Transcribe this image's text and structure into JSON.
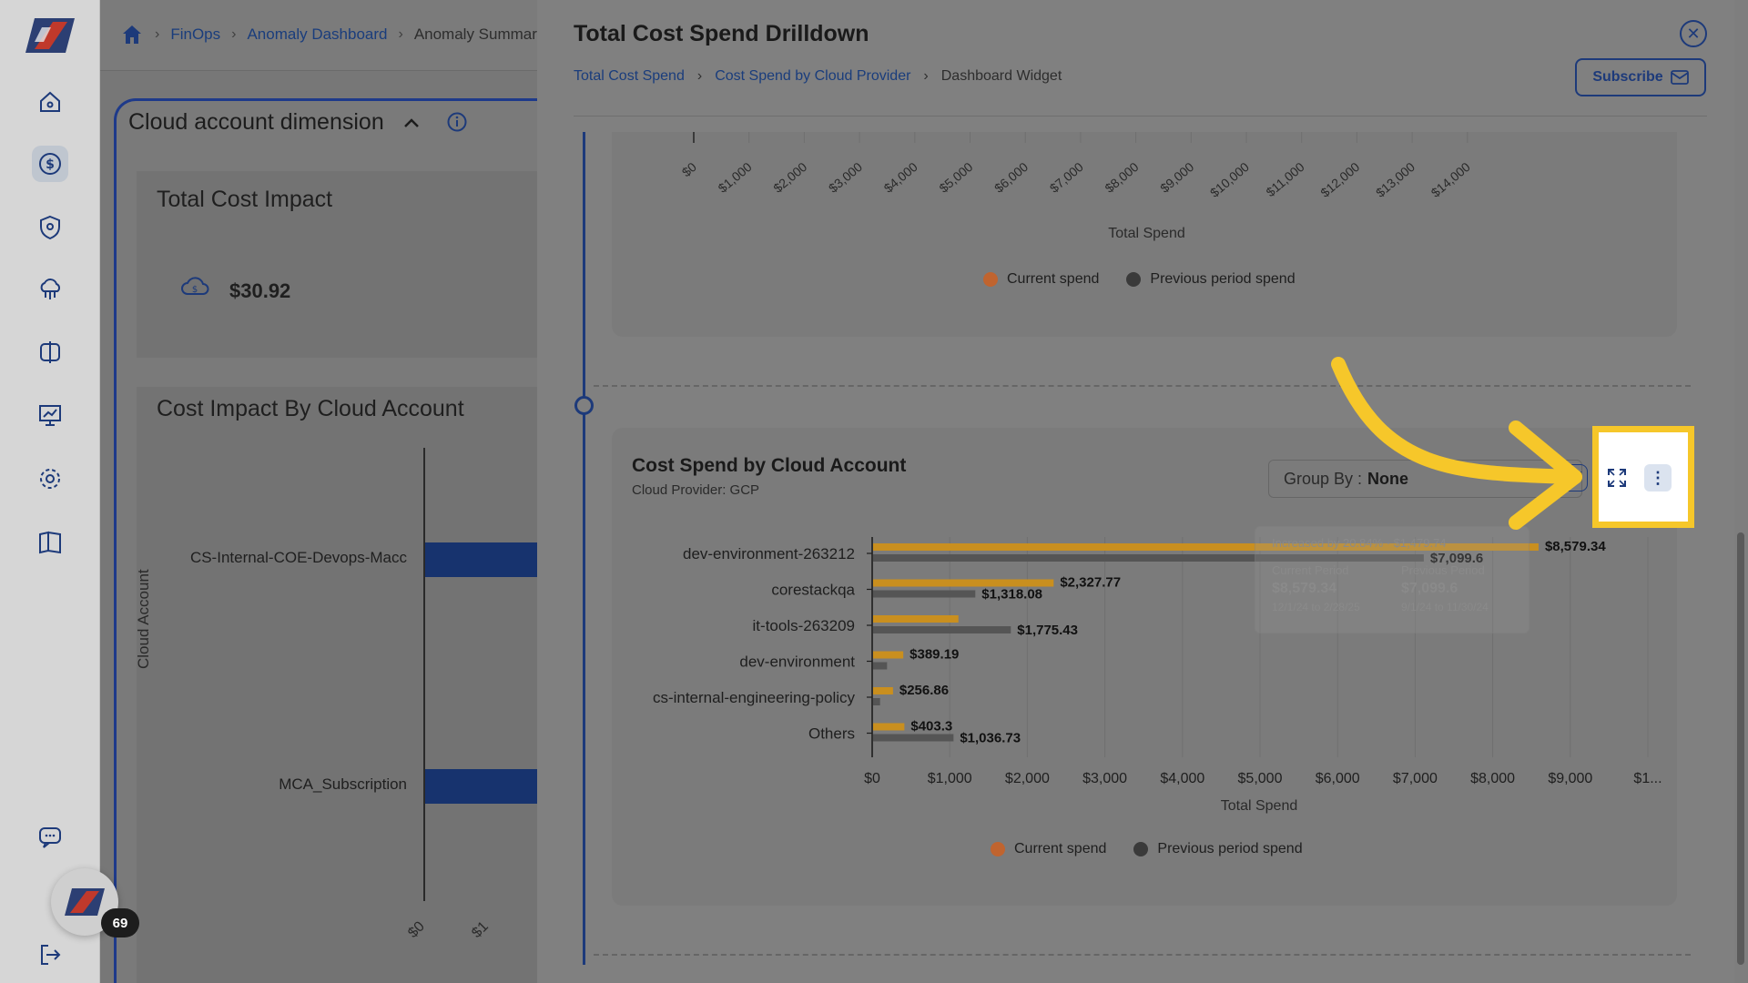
{
  "breadcrumb": {
    "items": [
      "FinOps",
      "Anomaly Dashboard",
      "Anomaly Summary"
    ]
  },
  "background": {
    "dimension_title": "Cloud account dimension",
    "card1": {
      "title": "Total Cost Impact",
      "amount": "$30.92"
    },
    "card2": {
      "title": "Cost Impact By Cloud Account",
      "y_axis_label": "Cloud Account",
      "rows": [
        {
          "label": "CS-Internal-COE-Devops-Macc"
        },
        {
          "label": "MCA_Subscription"
        }
      ],
      "ticks": [
        "$0",
        "$1"
      ]
    },
    "notification_count": "69"
  },
  "drawer": {
    "title": "Total Cost Spend Drilldown",
    "breadcrumb": [
      "Total Cost Spend",
      "Cost Spend by Cloud Provider",
      "Dashboard Widget"
    ],
    "subscribe_label": "Subscribe",
    "top_chart": {
      "x_ticks": [
        "$0",
        "$1,000",
        "$2,000",
        "$3,000",
        "$4,000",
        "$5,000",
        "$6,000",
        "$7,000",
        "$8,000",
        "$9,000",
        "$10,000",
        "$11,000",
        "$12,000",
        "$13,000",
        "$14,000"
      ],
      "x_label": "Total Spend",
      "legend": [
        "Current spend",
        "Previous period spend"
      ]
    },
    "bottom_chart": {
      "title": "Cost Spend by Cloud Account",
      "subtitle": "Cloud Provider: GCP",
      "group_by_label": "Group By :",
      "group_by_value": "None",
      "legend": [
        "Current spend",
        "Previous period spend"
      ],
      "tooltip": {
        "header": "Increased by 20.84% · $1,479.74",
        "current_label": "Current Period",
        "current_value": "$8,579.34",
        "current_range": "12/1/24 to 2/28/25",
        "previous_label": "Previous Period",
        "previous_value": "$7,099.6",
        "previous_range": "9/1/24 to 11/30/24"
      }
    }
  },
  "colors": {
    "current": "#c98f1f",
    "previous": "#555555",
    "accent": "#1d3a7a",
    "highlight": "#f6c72a"
  },
  "chart_data": {
    "type": "bar",
    "orientation": "horizontal",
    "title": "Cost Spend by Cloud Account",
    "subtitle": "Cloud Provider: GCP",
    "xlabel": "Total Spend",
    "ylabel": "",
    "xlim": [
      0,
      10000
    ],
    "x_ticks": [
      "$0",
      "$1,000",
      "$2,000",
      "$3,000",
      "$4,000",
      "$5,000",
      "$6,000",
      "$7,000",
      "$8,000",
      "$9,000",
      "$1..."
    ],
    "categories": [
      "dev-environment-263212",
      "corestackqa",
      "it-tools-263209",
      "dev-environment",
      "cs-internal-engineering-policy",
      "Others"
    ],
    "series": [
      {
        "name": "Current spend",
        "values": [
          8579.34,
          2327.77,
          1100,
          389.19,
          256.86,
          403.3
        ],
        "labels": [
          "$8,579.34",
          "$2,327.77",
          "",
          "$389.19",
          "$256.86",
          "$403.3"
        ]
      },
      {
        "name": "Previous period spend",
        "values": [
          7099.6,
          1318.08,
          1775.43,
          180,
          90,
          1036.73
        ],
        "labels": [
          "$7,099.6",
          "$1,318.08",
          "$1,775.43",
          "",
          "",
          "$1,036.73"
        ]
      }
    ],
    "legend_position": "bottom",
    "grid": true
  }
}
